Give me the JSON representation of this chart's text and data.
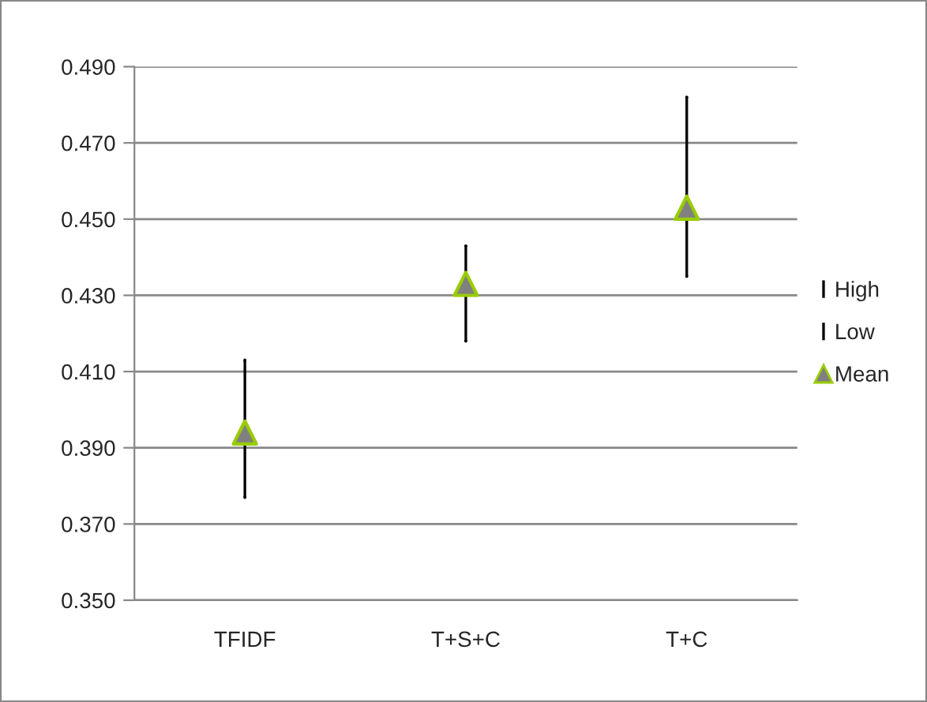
{
  "chart_data": {
    "type": "scatter",
    "categories": [
      "TFIDF",
      "T+S+C",
      "T+C"
    ],
    "series": [
      {
        "name": "High",
        "color": "#000000",
        "marker": "none",
        "values": [
          0.413,
          0.443,
          0.482
        ]
      },
      {
        "name": "Low",
        "color": "#000000",
        "marker": "none",
        "values": [
          0.377,
          0.418,
          0.435
        ]
      },
      {
        "name": "Mean",
        "color": "#808080",
        "marker": "triangle",
        "values": [
          0.394,
          0.433,
          0.453
        ]
      }
    ],
    "ylim": [
      0.35,
      0.49
    ],
    "yticks": [
      {
        "value": 0.35,
        "label": "0.350"
      },
      {
        "value": 0.37,
        "label": "0.370"
      },
      {
        "value": 0.39,
        "label": "0.390"
      },
      {
        "value": 0.41,
        "label": "0.410"
      },
      {
        "value": 0.43,
        "label": "0.430"
      },
      {
        "value": 0.45,
        "label": "0.450"
      },
      {
        "value": 0.47,
        "label": "0.470"
      },
      {
        "value": 0.49,
        "label": "0.490"
      }
    ],
    "grid": "y",
    "legend": "right"
  }
}
